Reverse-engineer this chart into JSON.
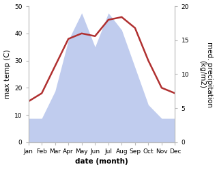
{
  "months": [
    "Jan",
    "Feb",
    "Mar",
    "Apr",
    "May",
    "Jun",
    "Jul",
    "Aug",
    "Sep",
    "Oct",
    "Nov",
    "Dec"
  ],
  "temp": [
    15,
    18,
    28,
    38,
    40,
    39,
    45,
    46,
    42,
    30,
    20,
    18
  ],
  "precip": [
    3.5,
    3.5,
    7.5,
    15,
    19,
    14,
    19,
    16.5,
    11,
    5.5,
    3.5,
    3.5
  ],
  "temp_color": "#b03030",
  "precip_color": "#c0ccee",
  "xlabel": "date (month)",
  "ylabel_left": "max temp (C)",
  "ylabel_right": "med. precipitation\n(kg/m2)",
  "left_ylim": [
    0,
    50
  ],
  "right_ylim": [
    0,
    20
  ],
  "left_yticks": [
    0,
    10,
    20,
    30,
    40,
    50
  ],
  "right_yticks": [
    0,
    5,
    10,
    15,
    20
  ],
  "bg_color": "#ffffff",
  "temp_linewidth": 1.8,
  "xlabel_fontsize": 7.5,
  "ylabel_fontsize": 7.5,
  "tick_fontsize": 6.5
}
